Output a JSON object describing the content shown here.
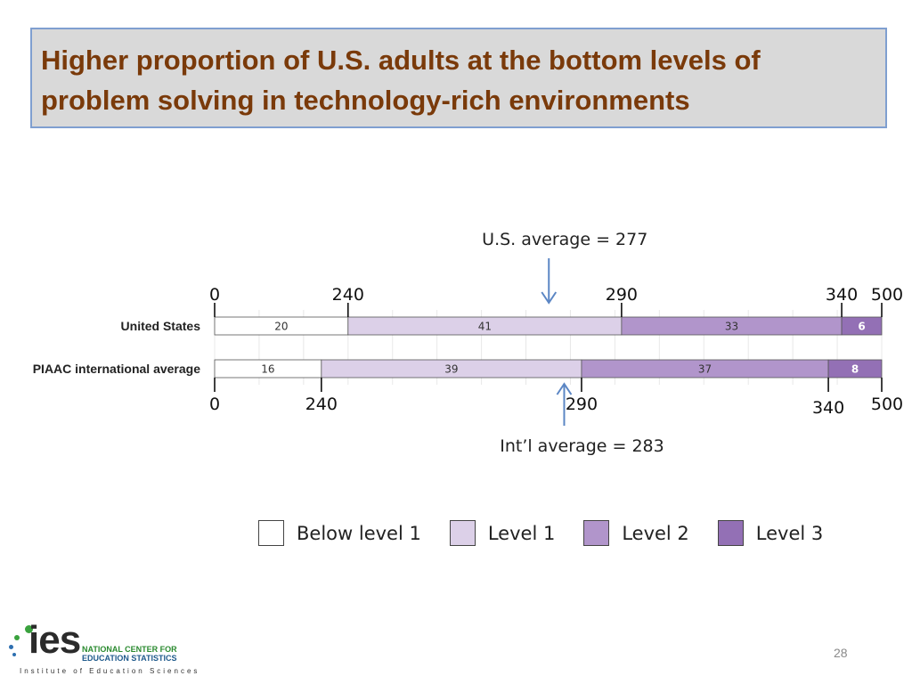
{
  "slide": {
    "title_line1": "Higher proportion of U.S. adults at the bottom levels of",
    "title_line2": "problem solving in technology-rich environments",
    "page_number": "28"
  },
  "logo": {
    "wordmark": "ies",
    "nces_line1": "NATIONAL CENTER FOR",
    "nces_line2": "EDUCATION STATISTICS",
    "institute": "Institute of Education Sciences"
  },
  "chart_data": {
    "type": "bar",
    "orientation": "horizontal",
    "stacked": true,
    "categories": [
      "United States",
      "PIAAC international average"
    ],
    "series": [
      {
        "name": "Below level 1",
        "values": [
          20,
          16
        ],
        "color": "#ffffff"
      },
      {
        "name": "Level 1",
        "values": [
          41,
          39
        ],
        "color": "#dcd0e8"
      },
      {
        "name": "Level 2",
        "values": [
          33,
          37
        ],
        "color": "#b195cb"
      },
      {
        "name": "Level 3",
        "values": [
          6,
          8
        ],
        "color": "#9370b5"
      }
    ],
    "scale_markers": [
      {
        "category": "United States",
        "position": "top",
        "labels": [
          "0",
          "240",
          "290",
          "340",
          "500"
        ]
      },
      {
        "category": "PIAAC international average",
        "position": "bottom",
        "labels": [
          "0",
          "240",
          "290",
          "340",
          "500"
        ]
      }
    ],
    "averages": [
      {
        "category": "United States",
        "label": "U.S. average = 277",
        "value": 277,
        "position": "top"
      },
      {
        "category": "PIAAC international average",
        "label": "Int’l average = 283",
        "value": 283,
        "position": "bottom"
      }
    ],
    "xlim": [
      0,
      100
    ],
    "grid": false,
    "legend": "bottom",
    "colors": {
      "arrow": "#5b86c4",
      "bar_border": "#555555",
      "ticks": "#000000"
    }
  }
}
